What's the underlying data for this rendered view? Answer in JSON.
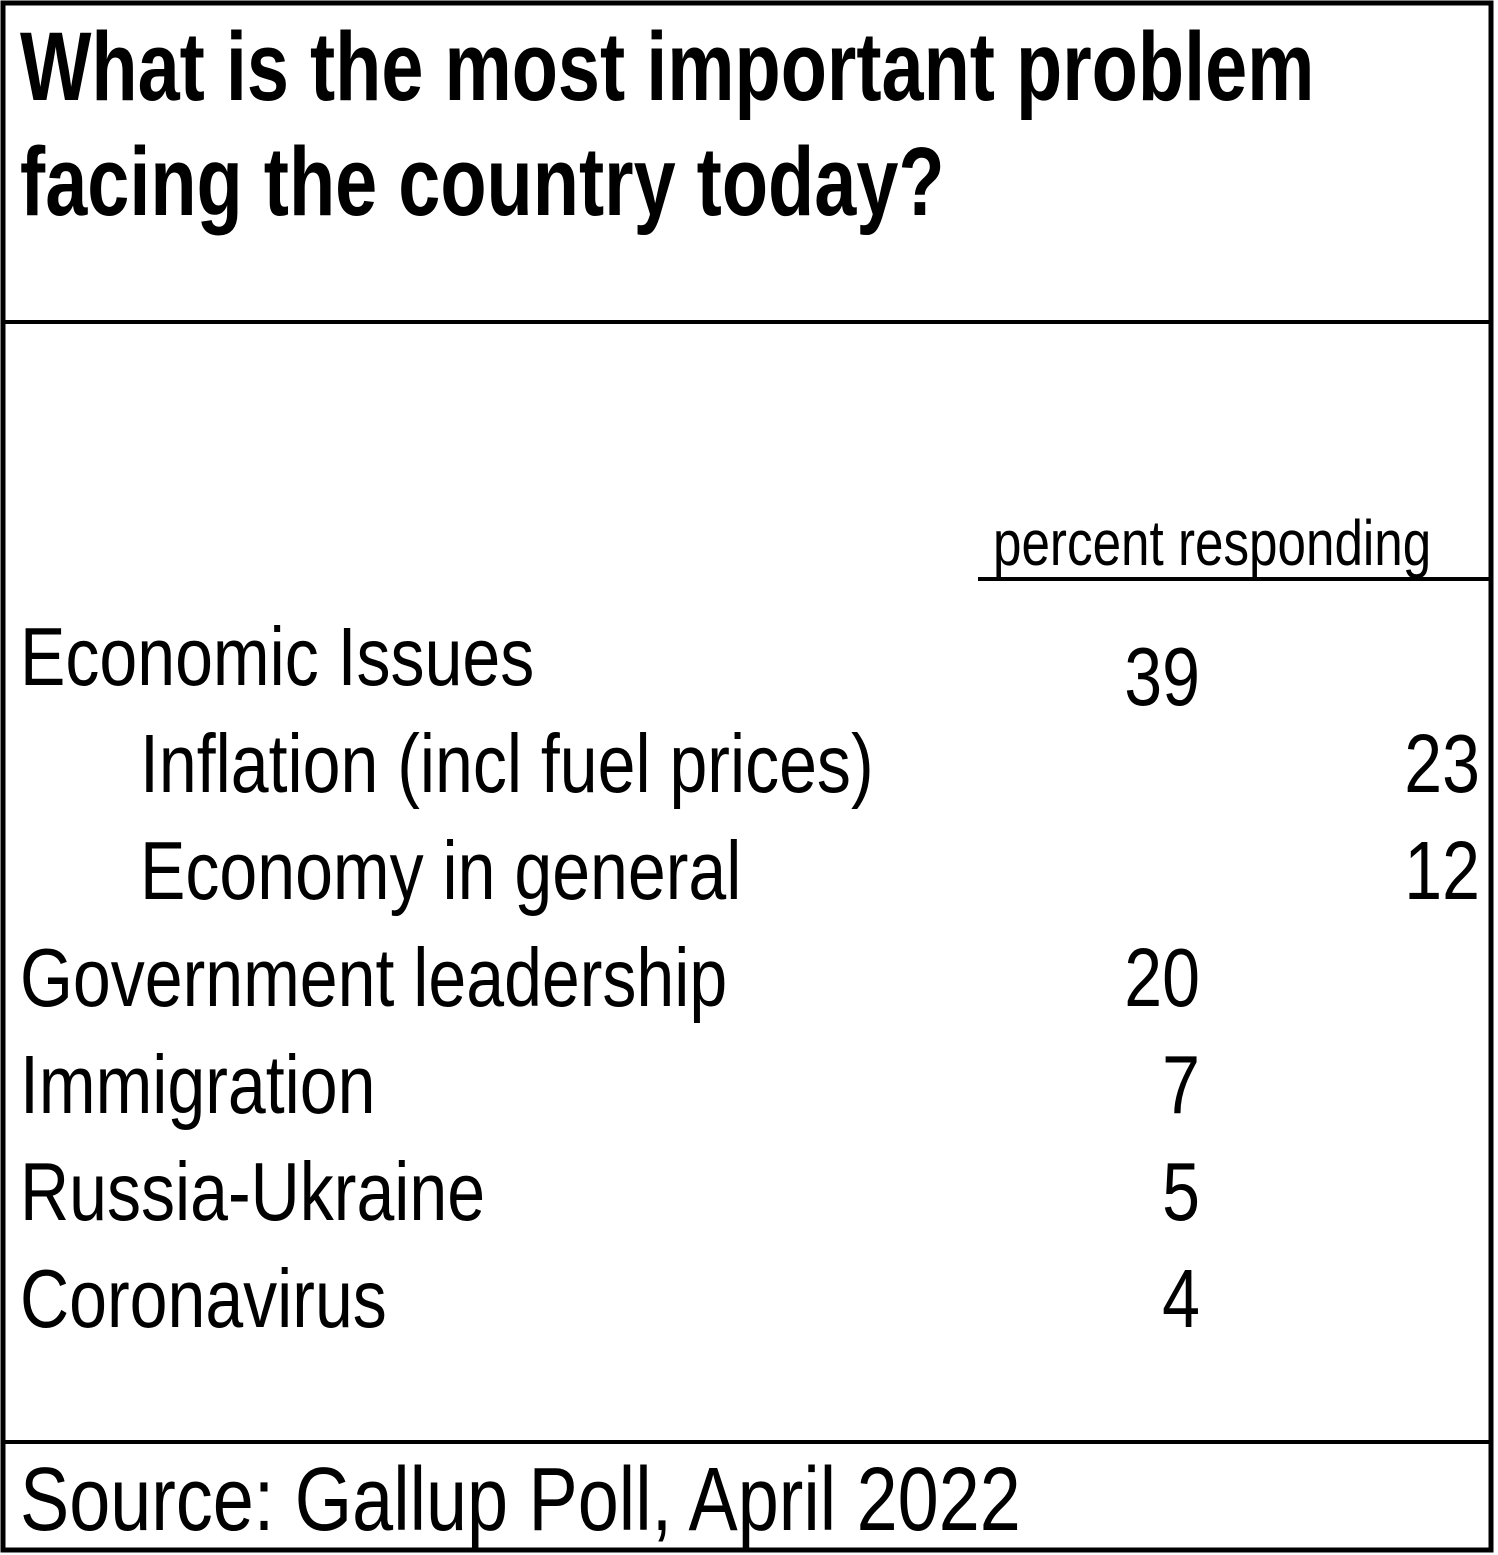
{
  "title_lines": [
    "What is the most important problem",
    "facing the country today?"
  ],
  "column_header": "percent responding",
  "rows": [
    {
      "label": "Economic Issues",
      "value": 39,
      "subrows": [
        {
          "label": "Inflation (incl fuel prices)",
          "value": 23
        },
        {
          "label": "Economy in general",
          "value": 12
        }
      ]
    },
    {
      "label": "Government leadership",
      "value": 20
    },
    {
      "label": "Immigration",
      "value": 7
    },
    {
      "label": "Russia-Ukraine",
      "value": 5
    },
    {
      "label": "Coronavirus",
      "value": 4
    }
  ],
  "source": "Source: Gallup Poll, April 2022"
}
